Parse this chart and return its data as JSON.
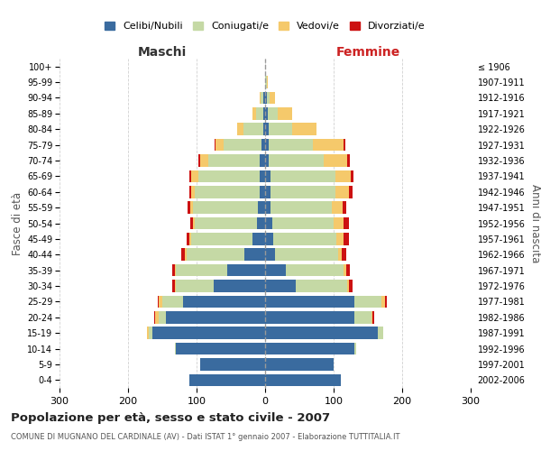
{
  "age_groups": [
    "0-4",
    "5-9",
    "10-14",
    "15-19",
    "20-24",
    "25-29",
    "30-34",
    "35-39",
    "40-44",
    "45-49",
    "50-54",
    "55-59",
    "60-64",
    "65-69",
    "70-74",
    "75-79",
    "80-84",
    "85-89",
    "90-94",
    "95-99",
    "100+"
  ],
  "birth_years": [
    "2002-2006",
    "1997-2001",
    "1992-1996",
    "1987-1991",
    "1982-1986",
    "1977-1981",
    "1972-1976",
    "1967-1971",
    "1962-1966",
    "1957-1961",
    "1952-1956",
    "1947-1951",
    "1942-1946",
    "1937-1941",
    "1932-1936",
    "1927-1931",
    "1922-1926",
    "1917-1921",
    "1912-1916",
    "1907-1911",
    "≤ 1906"
  ],
  "male_celibe": [
    110,
    95,
    130,
    165,
    145,
    120,
    75,
    55,
    30,
    18,
    12,
    10,
    8,
    8,
    8,
    5,
    3,
    3,
    2,
    0,
    0
  ],
  "male_coniugato": [
    0,
    0,
    2,
    5,
    10,
    30,
    55,
    75,
    85,
    90,
    90,
    95,
    95,
    90,
    75,
    55,
    28,
    10,
    4,
    0,
    0
  ],
  "male_vedovo": [
    0,
    0,
    0,
    2,
    5,
    5,
    2,
    2,
    2,
    2,
    3,
    4,
    5,
    10,
    12,
    12,
    10,
    5,
    2,
    0,
    0
  ],
  "male_divorziato": [
    0,
    0,
    0,
    0,
    2,
    2,
    3,
    4,
    6,
    4,
    4,
    4,
    3,
    2,
    2,
    2,
    0,
    0,
    0,
    0,
    0
  ],
  "female_nubile": [
    110,
    100,
    130,
    165,
    130,
    130,
    45,
    30,
    15,
    12,
    10,
    8,
    8,
    8,
    5,
    5,
    5,
    4,
    2,
    0,
    0
  ],
  "female_coniugata": [
    0,
    0,
    3,
    8,
    25,
    40,
    75,
    85,
    92,
    92,
    90,
    90,
    95,
    95,
    80,
    65,
    35,
    15,
    5,
    2,
    0
  ],
  "female_vedova": [
    0,
    0,
    0,
    0,
    2,
    5,
    3,
    4,
    5,
    10,
    15,
    15,
    20,
    22,
    35,
    45,
    35,
    20,
    8,
    2,
    0
  ],
  "female_divorziata": [
    0,
    0,
    0,
    0,
    2,
    2,
    4,
    5,
    7,
    8,
    8,
    5,
    5,
    4,
    4,
    2,
    0,
    0,
    0,
    0,
    0
  ],
  "color_celibe": "#3a6b9f",
  "color_coniugato": "#c5d9a5",
  "color_vedovo": "#f5c96b",
  "color_divorziato": "#cc1111",
  "title": "Popolazione per età, sesso e stato civile - 2007",
  "subtitle": "COMUNE DI MUGNANO DEL CARDINALE (AV) - Dati ISTAT 1° gennaio 2007 - Elaborazione TUTTITALIA.IT",
  "xlabel_left": "Maschi",
  "xlabel_right": "Femmine",
  "ylabel_left": "Fasce di età",
  "ylabel_right": "Anni di nascita",
  "xlim": 300,
  "bg_color": "#ffffff",
  "grid_color": "#cccccc"
}
